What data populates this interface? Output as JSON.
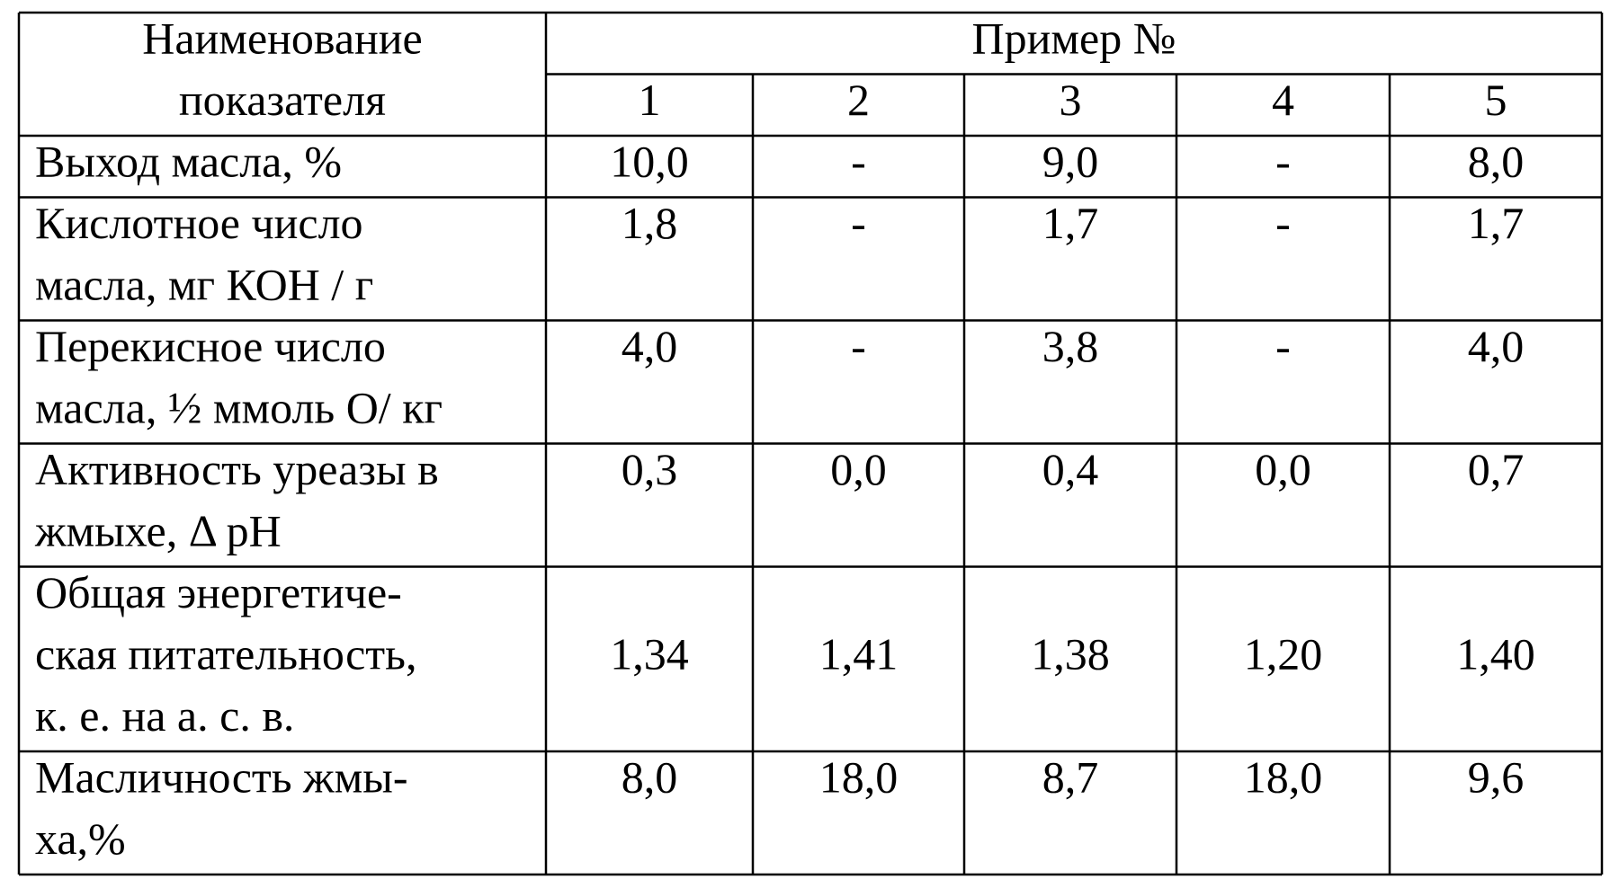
{
  "header": {
    "title_lines": [
      "Наименование",
      "показателя"
    ],
    "group": "Пример №",
    "columns": [
      "1",
      "2",
      "3",
      "4",
      "5"
    ]
  },
  "rows": [
    {
      "label_lines": [
        "Выход масла, %"
      ],
      "values": [
        "10,0",
        "-",
        "9,0",
        "-",
        "8,0"
      ]
    },
    {
      "label_lines": [
        "Кислотное число",
        "масла, мг КОН / г"
      ],
      "values": [
        "1,8",
        "-",
        "1,7",
        "-",
        "1,7"
      ]
    },
    {
      "label_lines": [
        "Перекисное число",
        "масла, ½ ммоль О/ кг"
      ],
      "values": [
        "4,0",
        "-",
        "3,8",
        "-",
        "4,0"
      ]
    },
    {
      "label_lines": [
        "Активность уреазы в",
        "жмыхе, Δ рН"
      ],
      "values": [
        "0,3",
        "0,0",
        "0,4",
        "0,0",
        "0,7"
      ]
    },
    {
      "label_lines": [
        "Общая энергетиче-",
        "ская питательность,",
        "к. е. на а. с. в."
      ],
      "values": [
        "1,34",
        "1,41",
        "1,38",
        "1,20",
        "1,40"
      ]
    },
    {
      "label_lines": [
        "Масличность жмы-",
        "ха,%"
      ],
      "values": [
        "8,0",
        "18,0",
        "8,7",
        "18,0",
        "9,6"
      ]
    }
  ]
}
